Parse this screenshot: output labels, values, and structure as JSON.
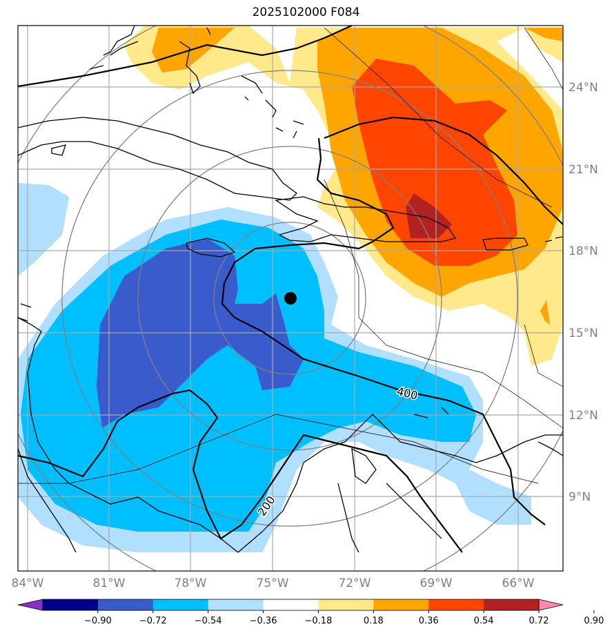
{
  "title": "2025102000 F084",
  "map": {
    "lon_labels": [
      "84°W",
      "81°W",
      "78°W",
      "75°W",
      "72°W",
      "69°W",
      "66°W"
    ],
    "lat_labels": [
      "24°N",
      "21°N",
      "18°N",
      "15°N",
      "12°N",
      "9°N"
    ],
    "contour_labels": [
      "400",
      "200"
    ],
    "center_marker": "storm-center-dot"
  },
  "colorbar": {
    "ticks": [
      "−0.90",
      "−0.72",
      "−0.54",
      "−0.36",
      "−0.18",
      "0.18",
      "0.36",
      "0.54",
      "0.72",
      "0.90"
    ],
    "colors": [
      "#8b2fc9",
      "#00008b",
      "#3a5bcc",
      "#00bfff",
      "#b0dfff",
      "#ffffff",
      "#ffe98a",
      "#ffa500",
      "#ff4500",
      "#b22222",
      "#ff88b0"
    ]
  },
  "colors": {
    "neg_strong": "#3a5bcc",
    "neg_mid": "#00bfff",
    "neg_weak": "#b0dfff",
    "pos_weak": "#ffe98a",
    "pos_mid": "#ffa500",
    "pos_strong": "#ff4500",
    "pos_max": "#b22222"
  }
}
